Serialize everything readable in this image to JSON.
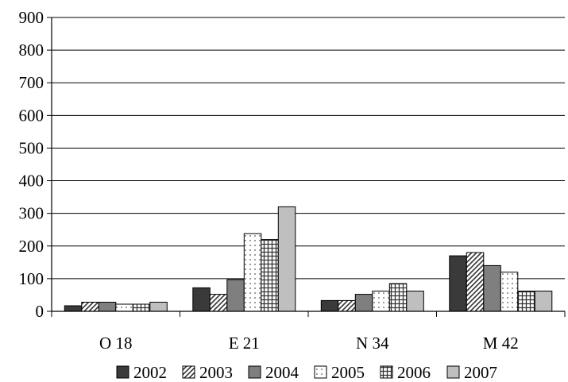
{
  "chart_data": {
    "type": "bar",
    "categories": [
      "O 18",
      "E 21",
      "N 34",
      "M 42"
    ],
    "series": [
      {
        "name": "2002",
        "values": [
          17,
          72,
          33,
          170
        ],
        "color": "#3a3a3a",
        "pattern": "solid-dark"
      },
      {
        "name": "2003",
        "values": [
          28,
          52,
          33,
          180
        ],
        "color": "#7f7f7f",
        "pattern": "diagonal-hatch"
      },
      {
        "name": "2004",
        "values": [
          28,
          97,
          52,
          140
        ],
        "color": "#7f7f7f",
        "pattern": "solid-gray"
      },
      {
        "name": "2005",
        "values": [
          22,
          238,
          62,
          120
        ],
        "color": "#ffffff",
        "pattern": "dots"
      },
      {
        "name": "2006",
        "values": [
          22,
          220,
          85,
          62
        ],
        "color": "#ffffff",
        "pattern": "grid"
      },
      {
        "name": "2007",
        "values": [
          28,
          320,
          62,
          62
        ],
        "color": "#bfbfbf",
        "pattern": "solid-light"
      }
    ],
    "y_ticks": [
      0,
      100,
      200,
      300,
      400,
      500,
      600,
      700,
      800,
      900
    ],
    "ylim": [
      0,
      900
    ],
    "grid": true,
    "legend_position": "bottom"
  }
}
